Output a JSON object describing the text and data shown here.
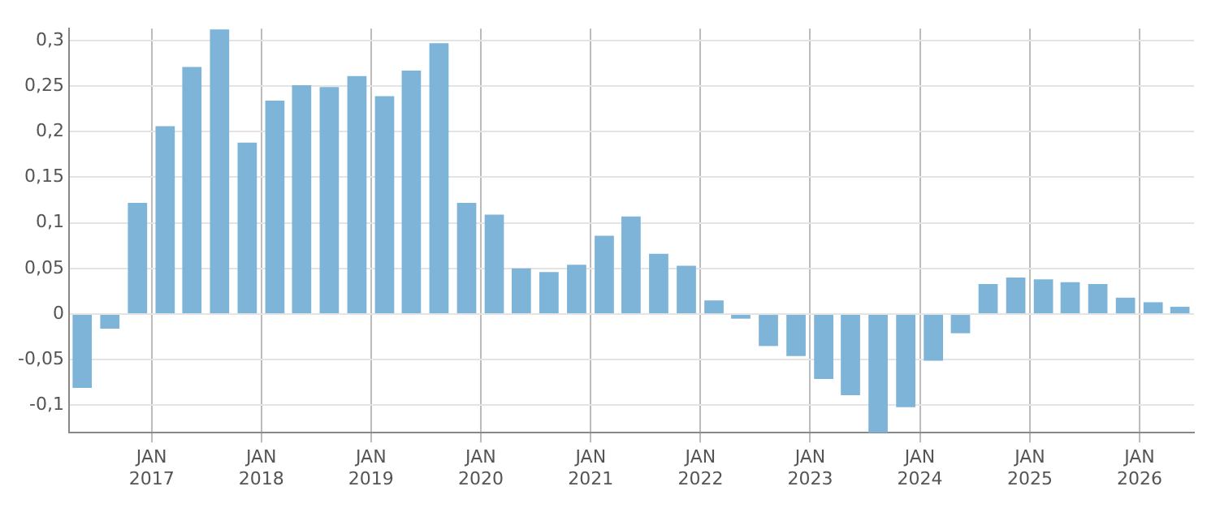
{
  "chart_data": {
    "type": "bar",
    "x": [
      "2016-05-15",
      "2016-08-15",
      "2016-11-15",
      "2017-02-15",
      "2017-05-15",
      "2017-08-15",
      "2017-11-15",
      "2018-02-15",
      "2018-05-15",
      "2018-08-15",
      "2018-11-15",
      "2019-02-15",
      "2019-05-15",
      "2019-08-15",
      "2019-11-15",
      "2020-02-15",
      "2020-05-15",
      "2020-08-15",
      "2020-11-15",
      "2021-02-15",
      "2021-05-15",
      "2021-08-15",
      "2021-11-15",
      "2022-02-15",
      "2022-05-15",
      "2022-08-15",
      "2022-11-15",
      "2023-02-15",
      "2023-05-15",
      "2023-08-15",
      "2023-11-15",
      "2024-02-15",
      "2024-05-15",
      "2024-08-15",
      "2024-11-15",
      "2025-02-15",
      "2025-05-15",
      "2025-08-15",
      "2025-11-15",
      "2026-02-15",
      "2026-05-15"
    ],
    "values": [
      -0.081,
      -0.016,
      0.122,
      0.206,
      0.271,
      0.312,
      0.188,
      0.234,
      0.251,
      0.249,
      0.261,
      0.239,
      0.267,
      0.297,
      0.122,
      0.109,
      0.05,
      0.046,
      0.054,
      0.086,
      0.107,
      0.066,
      0.053,
      0.015,
      -0.005,
      -0.035,
      -0.046,
      -0.071,
      -0.089,
      -0.13,
      -0.102,
      -0.051,
      -0.021,
      0.033,
      0.04,
      0.038,
      0.035,
      0.033,
      0.018,
      0.013,
      0.008
    ],
    "color": "#7db4d8",
    "xlim": [
      "2016-04-01",
      "2026-07-01"
    ],
    "xticks": [
      {
        "value": "2017-01-01",
        "label": "JAN 2017"
      },
      {
        "value": "2018-01-01",
        "label": "JAN 2018"
      },
      {
        "value": "2019-01-01",
        "label": "JAN 2019"
      },
      {
        "value": "2020-01-01",
        "label": "JAN 2020"
      },
      {
        "value": "2021-01-01",
        "label": "JAN 2021"
      },
      {
        "value": "2022-01-01",
        "label": "JAN 2022"
      },
      {
        "value": "2023-01-01",
        "label": "JAN 2023"
      },
      {
        "value": "2024-01-01",
        "label": "JAN 2024"
      },
      {
        "value": "2025-01-01",
        "label": "JAN 2025"
      },
      {
        "value": "2026-01-01",
        "label": "JAN 2026"
      }
    ],
    "ylim": [
      -0.13,
      0.313
    ],
    "yticks": [
      {
        "value": -0.1,
        "label": "-0,1"
      },
      {
        "value": -0.05,
        "label": "-0,05"
      },
      {
        "value": 0,
        "label": "0"
      },
      {
        "value": 0.05,
        "label": "0,05"
      },
      {
        "value": 0.1,
        "label": "0,1"
      },
      {
        "value": 0.15,
        "label": "0,15"
      },
      {
        "value": 0.2,
        "label": "0,2"
      },
      {
        "value": 0.25,
        "label": "0,25"
      },
      {
        "value": 0.3,
        "label": "0,3"
      }
    ],
    "grid": true
  }
}
